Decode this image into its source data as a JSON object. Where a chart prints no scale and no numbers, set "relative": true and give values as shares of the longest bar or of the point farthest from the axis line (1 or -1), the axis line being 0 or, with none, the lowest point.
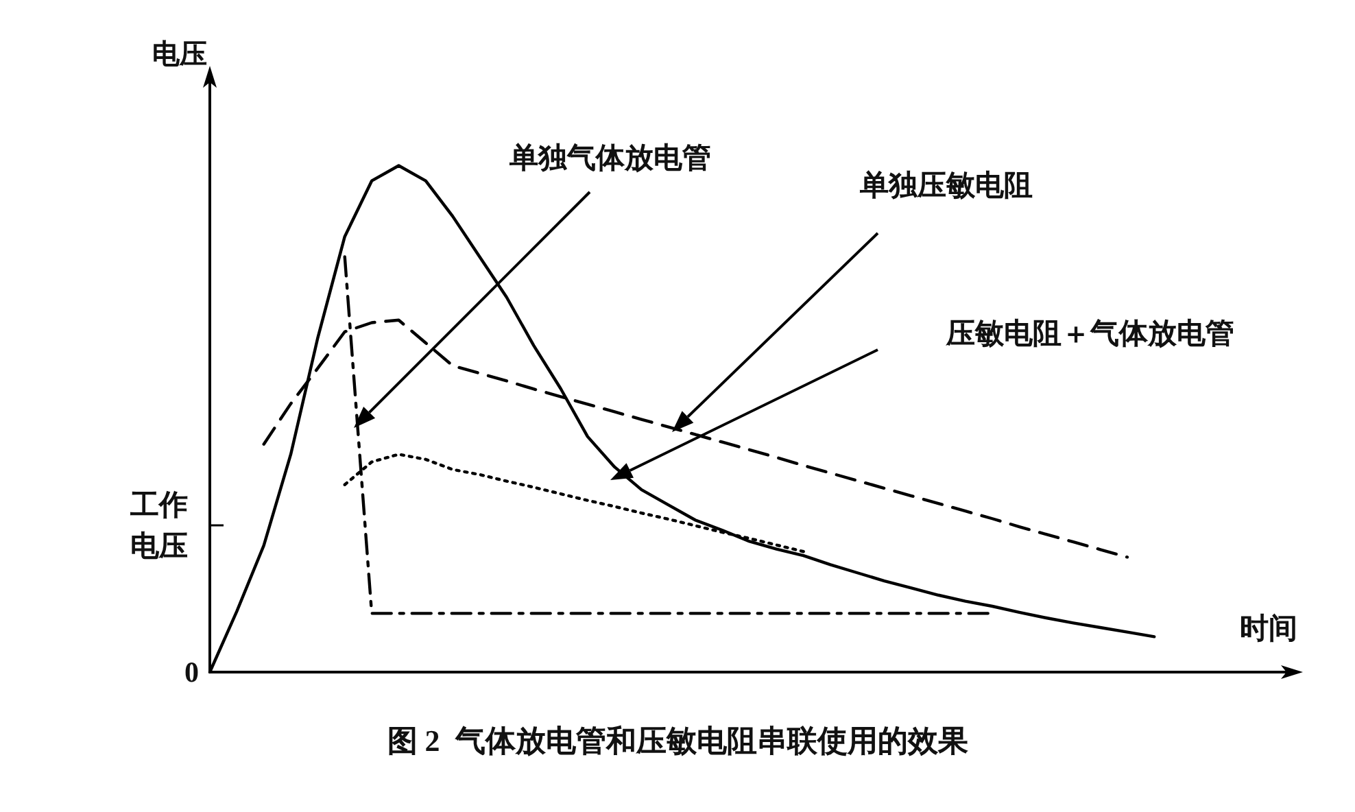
{
  "chart_data": {
    "type": "line",
    "title": "图 2  气体放电管和压敏电阻串联使用的效果",
    "xlabel": "时间",
    "ylabel": "电压",
    "relative": true,
    "grid": false,
    "marker": "none",
    "categories": [
      null,
      null,
      null,
      null,
      null,
      null,
      null,
      null,
      null,
      null,
      null,
      null,
      null,
      null,
      null,
      null,
      null,
      null,
      null,
      null,
      null,
      null,
      null,
      null,
      null,
      null,
      null,
      null,
      null,
      null,
      null,
      null,
      null,
      null,
      null,
      null,
      null,
      null,
      null,
      null,
      null
    ],
    "series": [
      {
        "color": "#000000",
        "line_style": "solid",
        "values": [
          0,
          0.12,
          0.25,
          0.43,
          0.66,
          0.86,
          0.97,
          1,
          0.97,
          0.9,
          0.82,
          0.74,
          0.645,
          0.56,
          0.465,
          0.405,
          0.36,
          0.33,
          0.3,
          0.28,
          0.258,
          0.243,
          0.23,
          0.212,
          0.196,
          0.18,
          0.166,
          0.152,
          0.14,
          0.13,
          0.118,
          0.107,
          0.097,
          0.088,
          0.079,
          0.07,
          null,
          null,
          null,
          null,
          null
        ]
      },
      {
        "color": "#000000",
        "line_style": "dashed",
        "values": [
          null,
          null,
          0.45,
          0.53,
          0.6,
          0.672,
          0.69,
          0.695,
          0.65,
          0.605,
          0.59,
          0.575,
          0.559,
          0.544,
          0.529,
          0.514,
          0.499,
          0.484,
          0.469,
          0.454,
          0.439,
          0.424,
          0.408,
          0.393,
          0.378,
          0.363,
          0.348,
          0.333,
          0.318,
          0.303,
          0.287,
          0.272,
          0.257,
          0.242,
          0.227,
          null,
          null,
          null,
          null,
          null,
          null
        ]
      },
      {
        "color": "#000000",
        "line_style": "dashdot",
        "values": [
          null,
          null,
          null,
          null,
          null,
          0.82,
          0.116,
          0.116,
          0.116,
          0.116,
          0.116,
          0.116,
          0.116,
          0.116,
          0.116,
          0.116,
          0.116,
          0.116,
          0.116,
          0.116,
          0.116,
          0.116,
          0.116,
          0.116,
          0.116,
          0.116,
          0.116,
          0.116,
          0.116,
          0.116,
          null,
          null,
          null,
          null,
          null,
          null,
          null,
          null,
          null,
          null,
          null
        ]
      },
      {
        "color": "#000000",
        "line_style": "dotted",
        "values": [
          null,
          null,
          null,
          null,
          null,
          0.37,
          0.415,
          0.43,
          0.42,
          0.4,
          0.39,
          0.377,
          0.365,
          0.352,
          0.339,
          0.327,
          0.314,
          0.302,
          0.289,
          0.276,
          0.264,
          0.251,
          0.238,
          null,
          null,
          null,
          null,
          null,
          null,
          null,
          null,
          null,
          null,
          null,
          null,
          null,
          null,
          null,
          null,
          null,
          null
        ]
      }
    ],
    "annotations": [
      "0",
      "工作电压",
      "单独气体放电管",
      "单独压敏电阻",
      "压敏电阻＋气体放电管"
    ]
  }
}
